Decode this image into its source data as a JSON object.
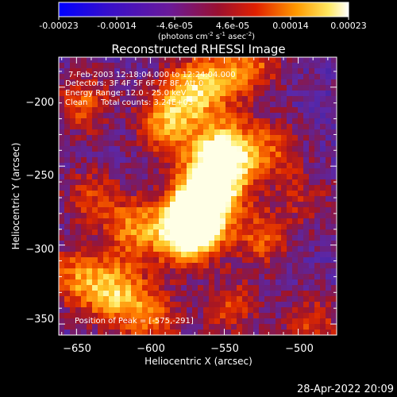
{
  "colorbar": {
    "tick_labels": [
      "-0.00023",
      "-0.00014",
      "-4.6e-05",
      "4.6e-05",
      "0.00014",
      "0.00023"
    ],
    "unit_prefix": "(photons cm",
    "unit_exp1": "-2",
    "unit_mid": " s",
    "unit_exp2": "-1",
    "unit_mid2": " asec",
    "unit_exp3": "-2",
    "unit_suffix": ")",
    "range": [
      -0.00023,
      0.00023
    ]
  },
  "info": {
    "line1": "7-Feb-2003 12:18:04.000 to 12:24:04.000",
    "line2": "Detectors: 3F 4F 5F 6F 7F 8F, Att 0",
    "line3": "Energy Range: 12.0 - 25.0 keV",
    "line4_method": "Clean",
    "line4_counts": "Total counts: 3.24E+03",
    "peak": "Position of Peak = [-575,-291]"
  },
  "footer": {
    "timestamp": "28-Apr-2022 20:09"
  },
  "chart_data": {
    "type": "heatmap",
    "title": "Reconstructed RHESSI Image",
    "xlabel": "Heliocentric X (arcsec)",
    "ylabel": "Heliocentric Y (arcsec)",
    "xlim": [
      -662,
      -474
    ],
    "ylim": [
      -357,
      -181
    ],
    "xticks": [
      -650,
      -600,
      -550,
      -500
    ],
    "yticks": [
      -200,
      -250,
      -300,
      -350
    ],
    "xtick_labels": [
      "−650",
      "−600",
      "−550",
      "−500"
    ],
    "ytick_labels": [
      "−200",
      "−250",
      "−300",
      "−350"
    ],
    "colormap": "rainbow-hot (blue-purple-red-orange-yellow-white)",
    "peak_position": [
      -575,
      -291
    ],
    "emission_features": [
      {
        "x": -575,
        "y": -291,
        "relative_intensity": 1.0
      },
      {
        "x": -565,
        "y": -275,
        "relative_intensity": 0.8
      },
      {
        "x": -555,
        "y": -255,
        "relative_intensity": 0.7
      },
      {
        "x": -550,
        "y": -240,
        "relative_intensity": 0.55
      },
      {
        "x": -610,
        "y": -290,
        "relative_intensity": 0.45
      },
      {
        "x": -625,
        "y": -330,
        "relative_intensity": 0.55
      },
      {
        "x": -650,
        "y": -320,
        "relative_intensity": 0.4
      },
      {
        "x": -600,
        "y": -345,
        "relative_intensity": 0.4
      },
      {
        "x": -590,
        "y": -225,
        "relative_intensity": 0.45
      },
      {
        "x": -575,
        "y": -205,
        "relative_intensity": 0.5
      },
      {
        "x": -555,
        "y": -195,
        "relative_intensity": 0.4
      },
      {
        "x": -530,
        "y": -185,
        "relative_intensity": 0.35
      },
      {
        "x": -520,
        "y": -240,
        "relative_intensity": 0.35
      },
      {
        "x": -525,
        "y": -295,
        "relative_intensity": 0.35
      },
      {
        "x": -545,
        "y": -340,
        "relative_intensity": 0.3
      },
      {
        "x": -645,
        "y": -210,
        "relative_intensity": 0.35
      },
      {
        "x": -640,
        "y": -270,
        "relative_intensity": 0.3
      },
      {
        "x": -490,
        "y": -350,
        "relative_intensity": 0.3
      },
      {
        "x": -495,
        "y": -270,
        "relative_intensity": 0.2
      }
    ]
  }
}
